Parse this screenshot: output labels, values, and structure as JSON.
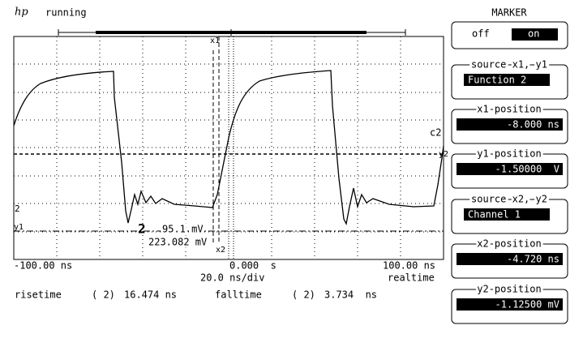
{
  "header": {
    "logo": "hp",
    "status": "running"
  },
  "screen": {
    "x_left": "-100.00 ns",
    "x_center": "0.000  s",
    "x_right": "100.00 ns",
    "timebase": "20.0 ns/div",
    "mode": "realtime",
    "markers": {
      "x1": "x1",
      "x2": "x2",
      "y1": "y1",
      "y2": "y2",
      "c2": "c2",
      "channel": "2",
      "ground": "2"
    },
    "readouts": {
      "channel": "2",
      "delta": "95.1 mV",
      "level": "223.082 mV"
    }
  },
  "measurements": [
    {
      "label": "risetime",
      "channel": "( 2)",
      "value": "16.474 ns"
    },
    {
      "label": "falltime",
      "channel": "( 2)",
      "value": "3.734  ns"
    }
  ],
  "menu": {
    "title": "MARKER",
    "toggle": {
      "off": "off",
      "on": "on"
    },
    "fields": [
      {
        "label": "source x1, y1",
        "value": "Function 2"
      },
      {
        "label": "x1 position",
        "value": "-8.000 ns"
      },
      {
        "label": "y1 position",
        "value": "-1.50000  V"
      },
      {
        "label": "source x2, y2",
        "value": "Channel 1"
      },
      {
        "label": "x2 position",
        "value": "-4.720 ns"
      },
      {
        "label": "y2 position",
        "value": "-1.12500 mV"
      }
    ]
  }
}
